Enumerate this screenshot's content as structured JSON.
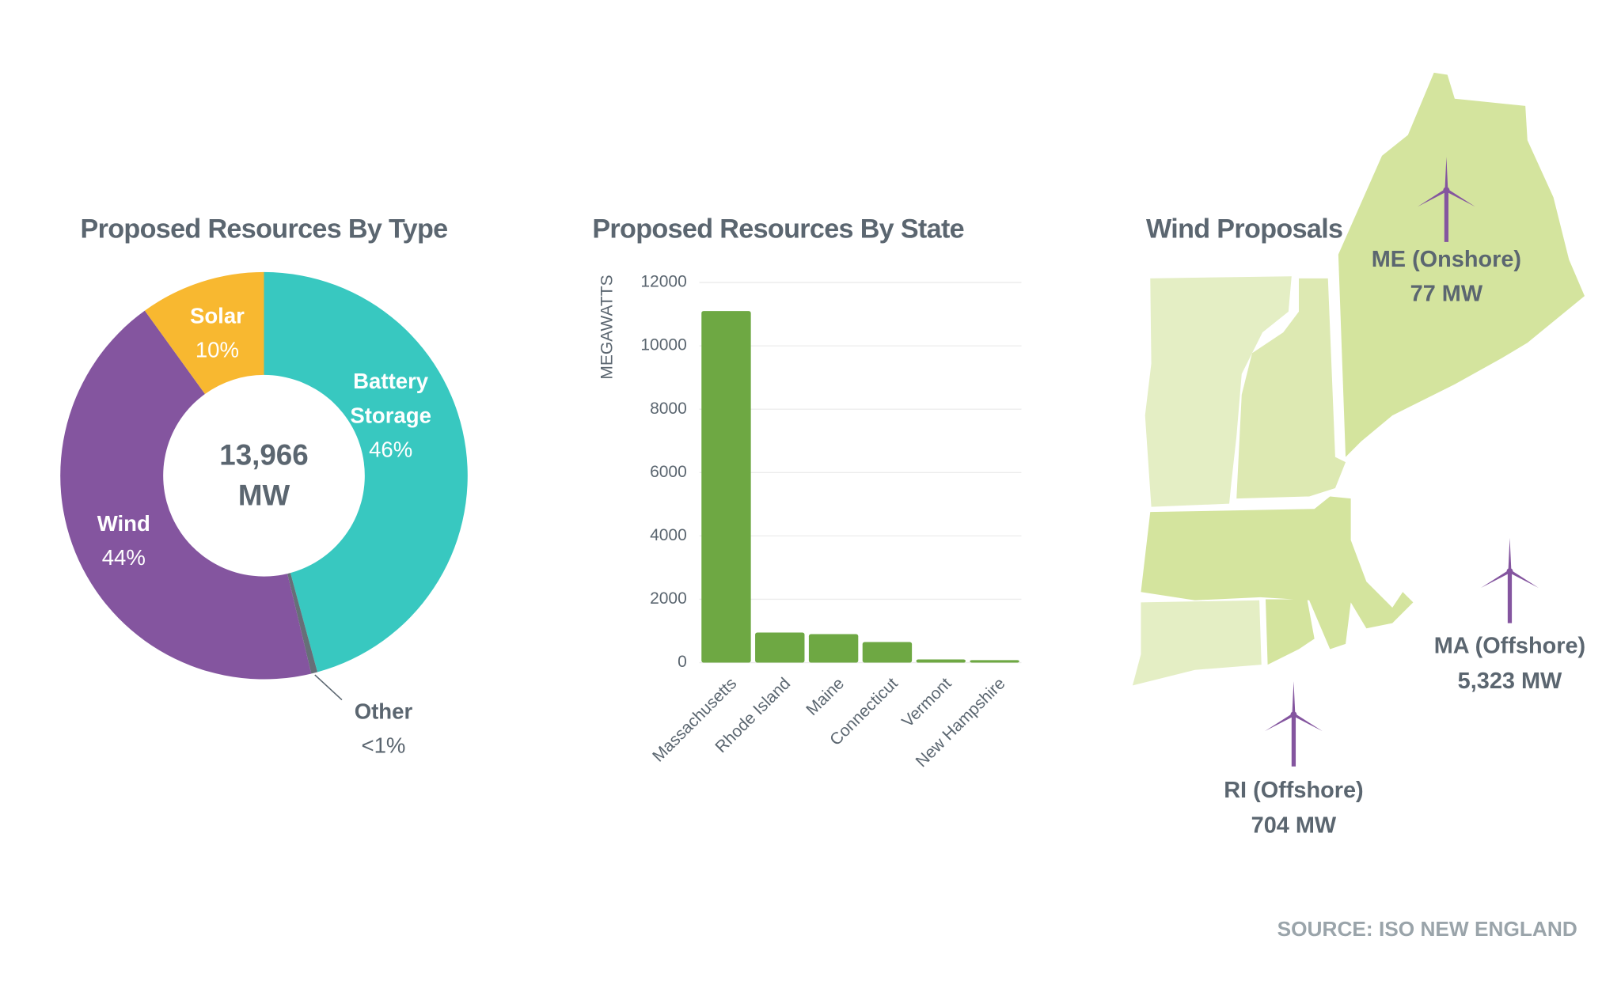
{
  "chart_data": [
    {
      "type": "pie",
      "title": "Proposed Resources By Type",
      "center_value": "13,966",
      "center_unit": "MW",
      "categories": [
        "Battery Storage",
        "Other",
        "Wind",
        "Solar"
      ],
      "values": [
        46,
        0.5,
        44,
        10
      ],
      "value_labels": [
        "46%",
        "<1%",
        "44%",
        "10%"
      ],
      "colors": [
        "#38c8c0",
        "#666f78",
        "#84559f",
        "#f8b830"
      ]
    },
    {
      "type": "bar",
      "title": "Proposed Resources By State",
      "y_label": "MEGAWATTS",
      "categories": [
        "Massachusetts",
        "Rhode Island",
        "Maine",
        "Connecticut",
        "Vermont",
        "New Hampshire"
      ],
      "values": [
        11100,
        950,
        900,
        650,
        100,
        80
      ],
      "color": "#6ea843",
      "ylim": [
        0,
        12000
      ],
      "yticks": [
        0,
        2000,
        4000,
        6000,
        8000,
        10000,
        12000
      ],
      "grid": true
    }
  ],
  "map": {
    "title": "Wind Proposals",
    "proposals": [
      {
        "label": "ME (Onshore)",
        "capacity": "77 MW"
      },
      {
        "label": "MA (Offshore)",
        "capacity": "5,323 MW"
      },
      {
        "label": "RI (Offshore)",
        "capacity": "704 MW"
      }
    ]
  },
  "source": "SOURCE: ISO NEW ENGLAND"
}
